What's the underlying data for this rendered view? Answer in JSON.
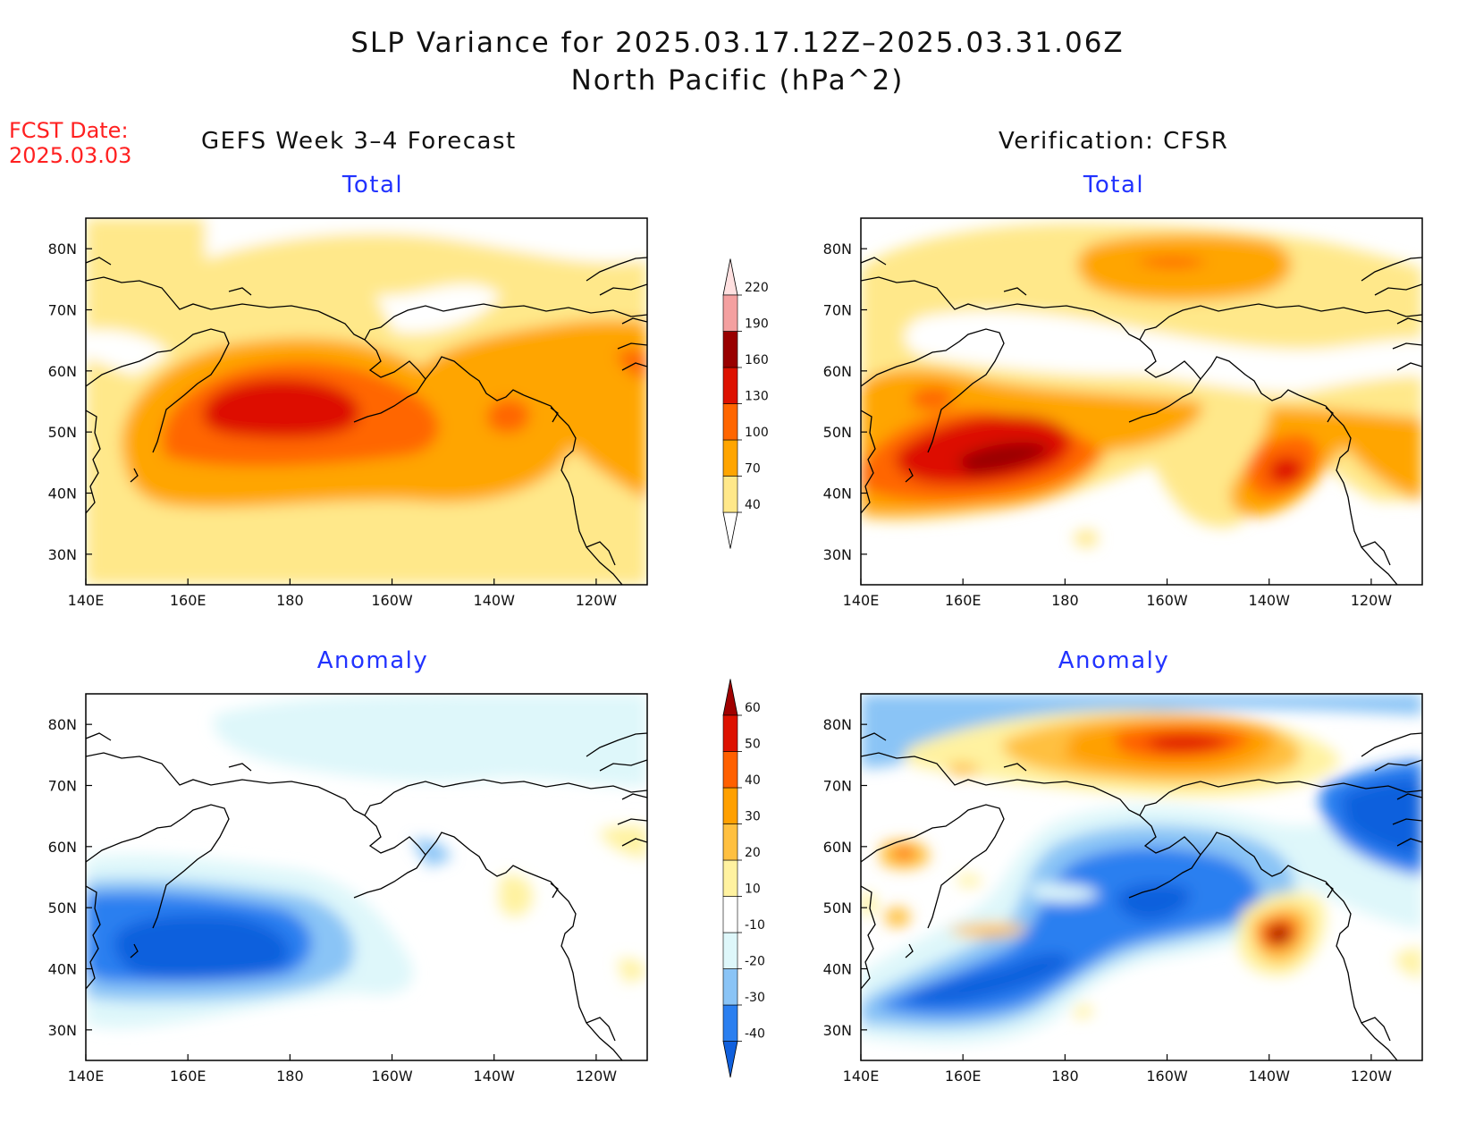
{
  "title": {
    "line1": "SLP Variance for 2025.03.17.12Z–2025.03.31.06Z",
    "line2": "North Pacific (hPa^2)"
  },
  "fcst": {
    "label": "FCST Date:",
    "date": "2025.03.03"
  },
  "columns": {
    "left": "GEFS Week 3–4 Forecast",
    "right": "Verification: CFSR"
  },
  "panels": {
    "total_left": {
      "label": "Total"
    },
    "total_right": {
      "label": "Total"
    },
    "anom_left": {
      "label": "Anomaly"
    },
    "anom_right": {
      "label": "Anomaly"
    }
  },
  "axes": {
    "lon_ticks": [
      "140E",
      "160E",
      "180",
      "160W",
      "140W",
      "120W"
    ],
    "lon_values": [
      140,
      160,
      180,
      200,
      220,
      240
    ],
    "lon_range": [
      140,
      250
    ],
    "lat_ticks": [
      "30N",
      "40N",
      "50N",
      "60N",
      "70N",
      "80N"
    ],
    "lat_values": [
      30,
      40,
      50,
      60,
      70,
      80
    ],
    "lat_range": [
      25,
      85
    ]
  },
  "colorbars": {
    "total": {
      "labels": [
        "40",
        "70",
        "100",
        "130",
        "160",
        "190",
        "220"
      ],
      "colors": [
        "#ffffff",
        "#ffe88a",
        "#ffa500",
        "#ff6600",
        "#dd1100",
        "#990000",
        "#f4a0a0",
        "#ffe0e0"
      ]
    },
    "anomaly": {
      "labels": [
        "-40",
        "-30",
        "-20",
        "-10",
        "10",
        "20",
        "30",
        "40",
        "50",
        "60"
      ],
      "colors": [
        "#1060dd",
        "#2a7ff0",
        "#8ac4f6",
        "#def7fa",
        "#ffffff",
        "#fff2a0",
        "#ffc040",
        "#ffa000",
        "#ff6000",
        "#dd1100",
        "#a00000"
      ]
    }
  }
}
